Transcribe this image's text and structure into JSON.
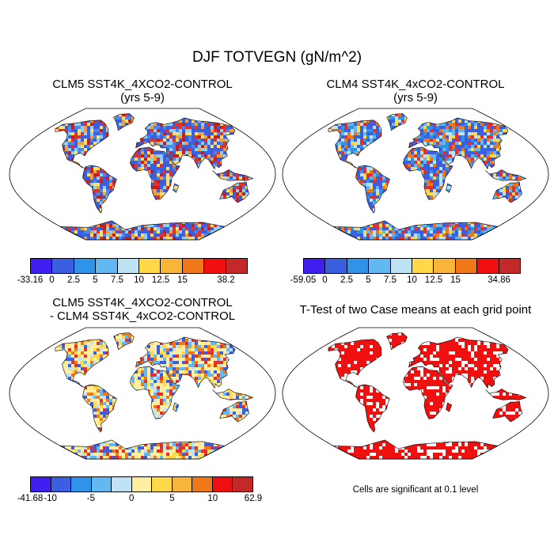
{
  "figure": {
    "title": "DJF TOTVEGN (gN/m^2)"
  },
  "panels": [
    {
      "id": "clm5",
      "title_lines": [
        "CLM5 SST4K_4XCO2-CONTROL",
        "(yrs 5-9)"
      ],
      "ocean_color": "#ffffff",
      "land_mix": [
        "#3a5fe0",
        "#3a5fe0",
        "#4f86ea",
        "#3a5fe0",
        "#8fd0f0",
        "#ffe066",
        "#f0a03a",
        "#e03030",
        "#c02020"
      ],
      "colorbar": {
        "colors": [
          "#3f1ef0",
          "#3a5fe0",
          "#2f94e8",
          "#62b8f0",
          "#bde3f5",
          "#ffd94a",
          "#f9b43a",
          "#f07818",
          "#f01010",
          "#c42828"
        ],
        "labels": [
          "-33.16",
          "0",
          "2.5",
          "5",
          "7.5",
          "10",
          "12.5",
          "15",
          "",
          "38.2"
        ]
      }
    },
    {
      "id": "clm4",
      "title_lines": [
        "CLM4 SST4K_4xCO2-CONTROL",
        "(yrs 5-9)"
      ],
      "ocean_color": "#ffffff",
      "land_mix": [
        "#3a5fe0",
        "#3a5fe0",
        "#2f94e8",
        "#3a5fe0",
        "#62b8f0",
        "#bde3f5",
        "#ffd94a",
        "#f07818",
        "#e03030"
      ],
      "colorbar": {
        "colors": [
          "#3f1ef0",
          "#3a5fe0",
          "#2f94e8",
          "#62b8f0",
          "#bde3f5",
          "#ffd94a",
          "#f9b43a",
          "#f07818",
          "#f01010",
          "#c42828"
        ],
        "labels": [
          "-59.05",
          "0",
          "2.5",
          "5",
          "7.5",
          "10",
          "12.5",
          "15",
          "",
          "34.86"
        ]
      }
    },
    {
      "id": "diff",
      "title_lines": [
        "CLM5 SST4K_4XCO2-CONTROL",
        "- CLM4 SST4K_4xCO2-CONTROL"
      ],
      "ocean_color": "#ffffff",
      "land_mix": [
        "#ffeea0",
        "#ffeea0",
        "#ffd94a",
        "#bde3f5",
        "#62b8f0",
        "#e03030",
        "#f07818",
        "#3a5fe0",
        "#ffeea0"
      ],
      "colorbar": {
        "colors": [
          "#3f1ef0",
          "#3a5fe0",
          "#2f94e8",
          "#62b8f0",
          "#bde3f5",
          "#ffeea0",
          "#ffd94a",
          "#f9b43a",
          "#f07818",
          "#f01010",
          "#c42828"
        ],
        "labels": [
          "-41.68",
          "-10",
          "",
          "-5",
          "",
          "0",
          "",
          "5",
          "",
          "10",
          "",
          "62.9"
        ]
      }
    },
    {
      "id": "ttest",
      "title_lines": [
        "T-Test of two Case means at each grid point"
      ],
      "ocean_color": "#ffffff",
      "land_mix": [
        "#f01010",
        "#f01010",
        "#f01010",
        "#ffffff",
        "#f01010",
        "#f01010",
        "#ffffff",
        "#f01010",
        "#f01010"
      ],
      "note": "Cells are significant at 0.1 level"
    }
  ]
}
